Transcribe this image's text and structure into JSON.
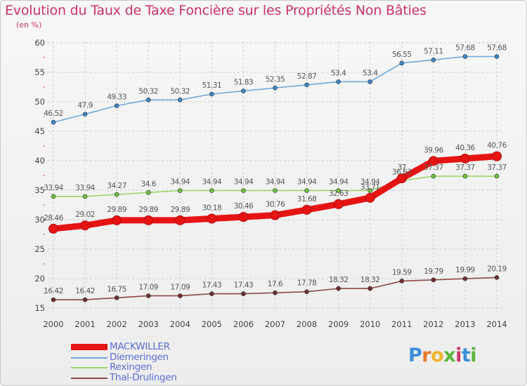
{
  "title": "Evolution du Taux de Taxe Foncière sur les Propriétés Non Bâties",
  "unit": "(en %)",
  "logo": {
    "text": "Proxiti",
    "colors": [
      "#3d8ed8",
      "#e8782a",
      "#f0b52e",
      "#5bb53a",
      "#cc3366",
      "#3d8ed8",
      "#5bb53a"
    ]
  },
  "chart_data": {
    "type": "line",
    "x": [
      "2000",
      "2001",
      "2002",
      "2003",
      "2004",
      "2005",
      "2006",
      "2007",
      "2008",
      "2009",
      "2010",
      "2011",
      "2012",
      "2013",
      "2014"
    ],
    "ylim": [
      15,
      60
    ],
    "yticks": [
      "15",
      "20",
      "25",
      "30",
      "35",
      "40",
      "45",
      "50",
      "55",
      "60"
    ],
    "grid": true,
    "legend_position": "bottom-left",
    "series": [
      {
        "name": "MACKWILLER",
        "color": "#e61414",
        "text_color": "#5a6ed8",
        "bold": true,
        "values": [
          28.46,
          29.02,
          29.89,
          29.89,
          29.89,
          30.18,
          30.46,
          30.76,
          31.68,
          32.63,
          33.71,
          37,
          39.96,
          40.36,
          40.76
        ],
        "labels": [
          "28.46",
          "29.02",
          "29.89",
          "29.89",
          "29.89",
          "30.18",
          "30.46",
          "30.76",
          "31.68",
          "32.63",
          "33.71",
          "37",
          "39.96",
          "40.36",
          "40.76"
        ]
      },
      {
        "name": "Diemeringen",
        "color": "#6fa8dc",
        "dot": "#3f86c8",
        "text_color": "#5a6ed8",
        "bold": false,
        "values": [
          46.52,
          47.9,
          49.33,
          50.32,
          50.32,
          51.31,
          51.83,
          52.35,
          52.87,
          53.4,
          53.4,
          56.55,
          57.11,
          57.68,
          57.68
        ],
        "labels": [
          "46.52",
          "47.9",
          "49.33",
          "50.32",
          "50.32",
          "51.31",
          "51.83",
          "52.35",
          "52.87",
          "53.4",
          "53.4",
          "56.55",
          "57.11",
          "57.68",
          "57.68"
        ]
      },
      {
        "name": "Rexingen",
        "color": "#9ad66a",
        "dot": "#72c040",
        "text_color": "#5a6ed8",
        "bold": false,
        "values": [
          33.94,
          33.94,
          34.27,
          34.6,
          34.94,
          34.94,
          34.94,
          34.94,
          34.94,
          34.94,
          34.94,
          36.63,
          37.37,
          37.37,
          37.37
        ],
        "labels": [
          "33.94",
          "33.94",
          "34.27",
          "34.6",
          "34.94",
          "34.94",
          "34.94",
          "34.94",
          "34.94",
          "34.94",
          "34.94",
          "36.63",
          "37.37",
          "37.37",
          "37.37"
        ]
      },
      {
        "name": "Thal-Drulingen",
        "color": "#8b4a4a",
        "dot": "#6e2e2e",
        "text_color": "#5a6ed8",
        "bold": false,
        "values": [
          16.42,
          16.42,
          16.75,
          17.09,
          17.09,
          17.43,
          17.43,
          17.6,
          17.78,
          18.32,
          18.32,
          19.59,
          19.79,
          19.99,
          20.19
        ],
        "labels": [
          "16.42",
          "16.42",
          "16.75",
          "17.09",
          "17.09",
          "17.43",
          "17.43",
          "17.6",
          "17.78",
          "18.32",
          "18.32",
          "19.59",
          "19.79",
          "19.99",
          "20.19"
        ]
      }
    ]
  }
}
